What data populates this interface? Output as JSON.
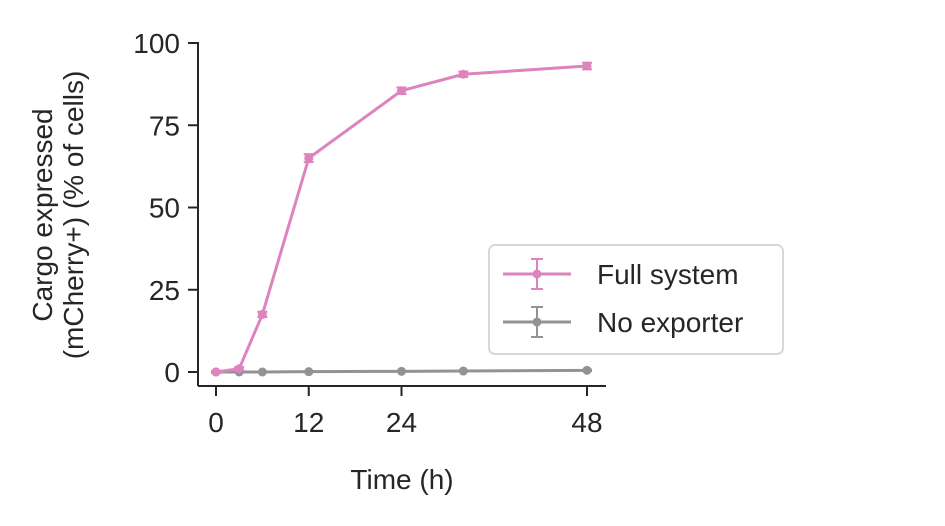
{
  "chart_data": {
    "type": "line",
    "title": "",
    "xlabel": "Time (h)",
    "ylabel_lines": [
      "Cargo expressed",
      "(mCherry+) (% of cells)"
    ],
    "xlim": [
      -2,
      50
    ],
    "ylim": [
      -4,
      100
    ],
    "xticks": [
      0,
      12,
      24,
      48
    ],
    "xtick_labels": [
      "0",
      "12",
      "24",
      "48"
    ],
    "yticks": [
      0,
      25,
      50,
      75,
      100
    ],
    "ytick_labels": [
      "0",
      "25",
      "50",
      "75",
      "100"
    ],
    "grid": false,
    "legend_position": "center-right",
    "series": [
      {
        "name": "Full system",
        "color": "#dd84be",
        "x": [
          0,
          3,
          6,
          12,
          24,
          32,
          48
        ],
        "y": [
          0,
          1,
          17.5,
          65,
          85.5,
          90.5,
          93
        ],
        "err": [
          0.3,
          0.5,
          0.8,
          1.2,
          1.0,
          0.8,
          1.0
        ]
      },
      {
        "name": "No exporter",
        "color": "#939393",
        "x": [
          0,
          3,
          6,
          12,
          24,
          32,
          48
        ],
        "y": [
          0,
          0,
          0,
          0.1,
          0.2,
          0.3,
          0.5
        ],
        "err": [
          0.1,
          0.1,
          0.1,
          0.1,
          0.1,
          0.1,
          0.2
        ]
      }
    ]
  }
}
